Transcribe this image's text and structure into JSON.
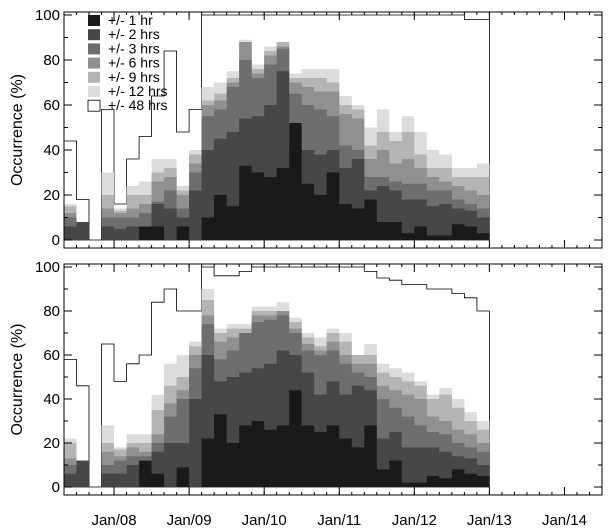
{
  "chart_data": [
    {
      "type": "area",
      "panel": "top",
      "ylabel": "Occurrence (%)",
      "ylim": [
        0,
        100
      ],
      "yticks": [
        0,
        20,
        40,
        60,
        80,
        100
      ],
      "xlim": [
        0,
        43
      ],
      "xticks": [
        {
          "x": 4,
          "label": "Jan/08"
        },
        {
          "x": 10,
          "label": "Jan/09"
        },
        {
          "x": 16,
          "label": "Jan/10"
        },
        {
          "x": 22,
          "label": "Jan/11"
        },
        {
          "x": 28,
          "label": "Jan/12"
        },
        {
          "x": 34,
          "label": "Jan/13"
        },
        {
          "x": 40,
          "label": "Jan/14"
        }
      ],
      "legend": {
        "position": "top-left",
        "entries": [
          "+/- 1 hr",
          "+/- 2 hrs",
          "+/- 3 hrs",
          "+/- 6 hrs",
          "+/- 9 hrs",
          "+/- 12 hrs",
          "+/- 48 hrs"
        ]
      },
      "colors": [
        "#1a1a1a",
        "#474747",
        "#6e6e6e",
        "#909090",
        "#b4b4b4",
        "#dcdcdc",
        "#ffffff"
      ],
      "series": [
        {
          "name": "+/- 1 hr",
          "values": [
            0,
            0,
            0,
            0,
            0,
            0,
            6,
            6,
            0,
            6,
            0,
            10,
            20,
            15,
            33,
            30,
            28,
            32,
            52,
            25,
            20,
            30,
            16,
            14,
            18,
            8,
            8,
            3,
            6,
            2,
            2,
            7,
            6,
            3
          ]
        },
        {
          "name": "+/- 2 hrs",
          "values": [
            6,
            8,
            0,
            6,
            5,
            6,
            6,
            16,
            14,
            10,
            22,
            40,
            45,
            48,
            54,
            55,
            60,
            75,
            42,
            40,
            38,
            40,
            32,
            36,
            22,
            24,
            22,
            18,
            18,
            15,
            16,
            14,
            13,
            10
          ]
        },
        {
          "name": "+/- 3 hrs",
          "values": [
            10,
            8,
            0,
            10,
            10,
            10,
            12,
            17,
            22,
            14,
            30,
            55,
            58,
            68,
            80,
            72,
            78,
            85,
            65,
            60,
            58,
            55,
            42,
            40,
            28,
            28,
            26,
            25,
            25,
            22,
            22,
            18,
            16,
            14
          ]
        },
        {
          "name": "+/- 6 hrs",
          "values": [
            12,
            8,
            0,
            14,
            12,
            14,
            16,
            26,
            28,
            20,
            34,
            60,
            62,
            70,
            88,
            74,
            82,
            86,
            70,
            68,
            66,
            66,
            56,
            54,
            36,
            40,
            34,
            36,
            32,
            28,
            26,
            24,
            22,
            20
          ]
        },
        {
          "name": "+/- 9 hrs",
          "values": [
            15,
            8,
            0,
            20,
            13,
            20,
            20,
            30,
            32,
            22,
            38,
            62,
            65,
            72,
            88,
            76,
            84,
            88,
            72,
            72,
            72,
            70,
            60,
            58,
            42,
            48,
            44,
            48,
            38,
            32,
            32,
            28,
            28,
            28
          ]
        },
        {
          "name": "+/- 12 hrs",
          "values": [
            16,
            8,
            0,
            30,
            14,
            24,
            26,
            36,
            36,
            24,
            40,
            68,
            70,
            75,
            89,
            78,
            86,
            88,
            74,
            76,
            76,
            76,
            64,
            60,
            50,
            58,
            48,
            55,
            48,
            40,
            38,
            32,
            32,
            34
          ]
        },
        {
          "name": "+/- 48 hrs",
          "values": [
            44,
            18,
            0,
            58,
            16,
            36,
            46,
            64,
            84,
            48,
            58,
            100,
            100,
            100,
            100,
            100,
            100,
            100,
            100,
            100,
            100,
            100,
            100,
            100,
            100,
            100,
            100,
            100,
            100,
            100,
            100,
            100,
            98,
            98
          ]
        }
      ]
    },
    {
      "type": "area",
      "panel": "bottom",
      "ylabel": "Occurrence (%)",
      "ylim": [
        0,
        100
      ],
      "yticks": [
        0,
        20,
        40,
        60,
        80,
        100
      ],
      "xlim": [
        0,
        43
      ],
      "xticks": [
        {
          "x": 4,
          "label": "Jan/08"
        },
        {
          "x": 10,
          "label": "Jan/09"
        },
        {
          "x": 16,
          "label": "Jan/10"
        },
        {
          "x": 22,
          "label": "Jan/11"
        },
        {
          "x": 28,
          "label": "Jan/12"
        },
        {
          "x": 34,
          "label": "Jan/13"
        },
        {
          "x": 40,
          "label": "Jan/14"
        }
      ],
      "colors": [
        "#1a1a1a",
        "#474747",
        "#6e6e6e",
        "#909090",
        "#b4b4b4",
        "#dcdcdc",
        "#ffffff"
      ],
      "series": [
        {
          "values": [
            0,
            0,
            0,
            0,
            0,
            0,
            12,
            6,
            0,
            9,
            0,
            22,
            33,
            20,
            28,
            30,
            26,
            28,
            44,
            28,
            25,
            28,
            22,
            18,
            28,
            8,
            12,
            2,
            2,
            5,
            4,
            8,
            6,
            5
          ]
        },
        {
          "values": [
            6,
            12,
            0,
            6,
            6,
            10,
            8,
            16,
            20,
            20,
            40,
            60,
            48,
            50,
            52,
            54,
            56,
            62,
            60,
            52,
            42,
            48,
            42,
            46,
            44,
            22,
            25,
            18,
            18,
            18,
            16,
            14,
            13,
            10
          ]
        },
        {
          "values": [
            10,
            12,
            0,
            10,
            12,
            14,
            14,
            20,
            32,
            40,
            54,
            74,
            58,
            62,
            70,
            75,
            76,
            78,
            70,
            62,
            60,
            62,
            56,
            52,
            50,
            40,
            36,
            32,
            28,
            25,
            24,
            20,
            18,
            16
          ]
        },
        {
          "values": [
            13,
            12,
            0,
            16,
            14,
            18,
            16,
            24,
            38,
            44,
            60,
            78,
            66,
            68,
            70,
            78,
            78,
            80,
            72,
            65,
            62,
            66,
            60,
            56,
            56,
            46,
            44,
            42,
            40,
            32,
            30,
            26,
            24,
            20
          ]
        },
        {
          "values": [
            20,
            12,
            0,
            20,
            17,
            20,
            20,
            35,
            46,
            50,
            64,
            85,
            70,
            72,
            72,
            80,
            80,
            80,
            75,
            68,
            64,
            70,
            66,
            60,
            60,
            52,
            50,
            48,
            46,
            40,
            42,
            36,
            30,
            26
          ]
        },
        {
          "values": [
            22,
            12,
            0,
            28,
            18,
            24,
            24,
            42,
            56,
            60,
            66,
            90,
            72,
            74,
            74,
            82,
            82,
            84,
            77,
            70,
            68,
            72,
            70,
            60,
            65,
            56,
            54,
            52,
            48,
            42,
            45,
            40,
            34,
            30
          ]
        },
        {
          "values": [
            58,
            46,
            0,
            65,
            48,
            56,
            60,
            84,
            90,
            80,
            80,
            100,
            96,
            96,
            98,
            100,
            100,
            100,
            100,
            100,
            100,
            100,
            100,
            100,
            98,
            95,
            94,
            92,
            92,
            90,
            90,
            88,
            86,
            80
          ]
        }
      ]
    }
  ]
}
